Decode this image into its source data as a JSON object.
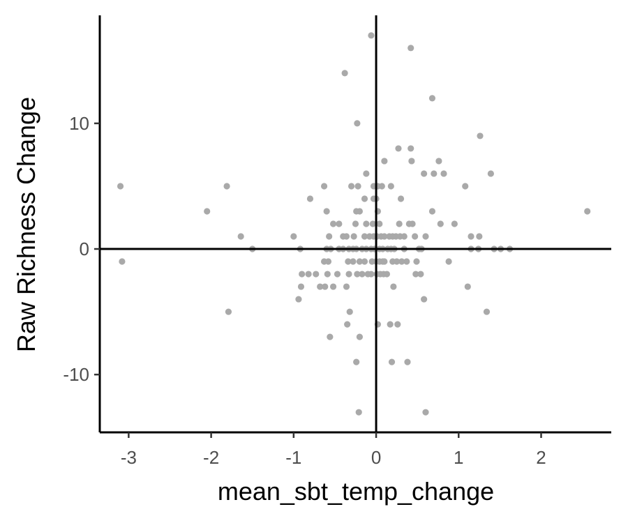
{
  "chart_data": {
    "type": "scatter",
    "title": "",
    "xlabel": "mean_sbt_temp_change",
    "ylabel": "Raw Richness Change",
    "xlim": [
      -3.35,
      2.85
    ],
    "ylim": [
      -14.6,
      18.6
    ],
    "xticks": [
      -3,
      -2,
      -1,
      0,
      1,
      2
    ],
    "yticks": [
      -10,
      0,
      10
    ],
    "reference_lines": {
      "x": 0,
      "y": 0
    },
    "grid": false,
    "point_color": "#a9a9a9",
    "axis_color": "#000000",
    "points": [
      [
        -0.06,
        17
      ],
      [
        0.42,
        16
      ],
      [
        -0.38,
        14
      ],
      [
        0.68,
        12
      ],
      [
        -0.23,
        10
      ],
      [
        1.26,
        9
      ],
      [
        0.27,
        8
      ],
      [
        0.42,
        8
      ],
      [
        0.1,
        7
      ],
      [
        0.43,
        7
      ],
      [
        0.76,
        7
      ],
      [
        -0.12,
        6
      ],
      [
        0.58,
        6
      ],
      [
        0.7,
        6
      ],
      [
        0.82,
        6
      ],
      [
        1.39,
        6
      ],
      [
        -3.1,
        5
      ],
      [
        -1.81,
        5
      ],
      [
        -0.63,
        5
      ],
      [
        -0.3,
        5
      ],
      [
        -0.22,
        5
      ],
      [
        -0.03,
        5
      ],
      [
        0.02,
        5
      ],
      [
        0.07,
        5
      ],
      [
        0.18,
        5
      ],
      [
        1.08,
        5
      ],
      [
        -0.14,
        4
      ],
      [
        -0.03,
        4
      ],
      [
        0.0,
        4
      ],
      [
        0.3,
        4
      ],
      [
        -0.8,
        4
      ],
      [
        -2.05,
        3
      ],
      [
        -0.6,
        3
      ],
      [
        -0.24,
        3
      ],
      [
        -0.2,
        3
      ],
      [
        0.02,
        3
      ],
      [
        0.68,
        3
      ],
      [
        2.56,
        3
      ],
      [
        -0.52,
        2
      ],
      [
        -0.45,
        2
      ],
      [
        -0.25,
        2
      ],
      [
        -0.12,
        2
      ],
      [
        -0.04,
        2
      ],
      [
        0.04,
        2
      ],
      [
        0.28,
        2
      ],
      [
        0.4,
        2
      ],
      [
        0.44,
        2
      ],
      [
        0.78,
        2
      ],
      [
        0.95,
        2
      ],
      [
        -1.64,
        1
      ],
      [
        -1.0,
        1
      ],
      [
        -0.57,
        1
      ],
      [
        -0.4,
        1
      ],
      [
        -0.36,
        1
      ],
      [
        -0.27,
        1
      ],
      [
        -0.14,
        1
      ],
      [
        -0.08,
        1
      ],
      [
        -0.03,
        1
      ],
      [
        0.01,
        1
      ],
      [
        0.06,
        1
      ],
      [
        0.1,
        1
      ],
      [
        0.16,
        1
      ],
      [
        0.2,
        1
      ],
      [
        0.24,
        1
      ],
      [
        0.29,
        1
      ],
      [
        0.34,
        1
      ],
      [
        0.47,
        1
      ],
      [
        0.6,
        1
      ],
      [
        1.15,
        1
      ],
      [
        1.25,
        1
      ],
      [
        -1.5,
        0
      ],
      [
        -0.92,
        0
      ],
      [
        -0.6,
        0
      ],
      [
        -0.55,
        0
      ],
      [
        -0.45,
        0
      ],
      [
        -0.4,
        0
      ],
      [
        -0.33,
        0
      ],
      [
        -0.28,
        0
      ],
      [
        -0.24,
        0
      ],
      [
        -0.17,
        0
      ],
      [
        -0.12,
        0
      ],
      [
        -0.06,
        0
      ],
      [
        -0.02,
        0
      ],
      [
        0.04,
        0
      ],
      [
        0.08,
        0
      ],
      [
        0.14,
        0
      ],
      [
        0.18,
        0
      ],
      [
        0.22,
        0
      ],
      [
        0.34,
        0
      ],
      [
        0.52,
        0
      ],
      [
        0.55,
        0
      ],
      [
        1.15,
        0
      ],
      [
        1.24,
        0
      ],
      [
        1.43,
        0
      ],
      [
        1.51,
        0
      ],
      [
        1.62,
        0
      ],
      [
        -3.08,
        -1
      ],
      [
        -0.63,
        -1
      ],
      [
        -0.58,
        -1
      ],
      [
        -0.34,
        -1
      ],
      [
        -0.28,
        -1
      ],
      [
        -0.2,
        -1
      ],
      [
        -0.14,
        -1
      ],
      [
        -0.05,
        -1
      ],
      [
        0.0,
        -1
      ],
      [
        0.04,
        -1
      ],
      [
        0.08,
        -1
      ],
      [
        0.1,
        -1
      ],
      [
        0.2,
        -1
      ],
      [
        0.25,
        -1
      ],
      [
        0.31,
        -1
      ],
      [
        0.37,
        -1
      ],
      [
        0.49,
        -1
      ],
      [
        0.88,
        -1
      ],
      [
        -0.9,
        -2
      ],
      [
        -0.82,
        -2
      ],
      [
        -0.73,
        -2
      ],
      [
        -0.59,
        -2
      ],
      [
        -0.47,
        -2
      ],
      [
        -0.33,
        -2
      ],
      [
        -0.23,
        -2
      ],
      [
        -0.17,
        -2
      ],
      [
        -0.1,
        -2
      ],
      [
        -0.06,
        -2
      ],
      [
        0.01,
        -2
      ],
      [
        0.05,
        -2
      ],
      [
        0.09,
        -2
      ],
      [
        0.13,
        -2
      ],
      [
        0.48,
        -2
      ],
      [
        0.54,
        -2
      ],
      [
        -0.91,
        -3
      ],
      [
        -0.68,
        -3
      ],
      [
        -0.62,
        -3
      ],
      [
        -0.52,
        -3
      ],
      [
        -0.36,
        -3
      ],
      [
        0.21,
        -3
      ],
      [
        1.11,
        -3
      ],
      [
        -0.94,
        -4
      ],
      [
        0.58,
        -4
      ],
      [
        -1.79,
        -5
      ],
      [
        -0.32,
        -5
      ],
      [
        1.34,
        -5
      ],
      [
        -0.35,
        -6
      ],
      [
        0.02,
        -6
      ],
      [
        0.17,
        -6
      ],
      [
        0.26,
        -6
      ],
      [
        -0.56,
        -7
      ],
      [
        -0.2,
        -7
      ],
      [
        -0.24,
        -9
      ],
      [
        0.19,
        -9
      ],
      [
        0.38,
        -9
      ],
      [
        -0.21,
        -13
      ],
      [
        0.6,
        -13
      ]
    ]
  }
}
